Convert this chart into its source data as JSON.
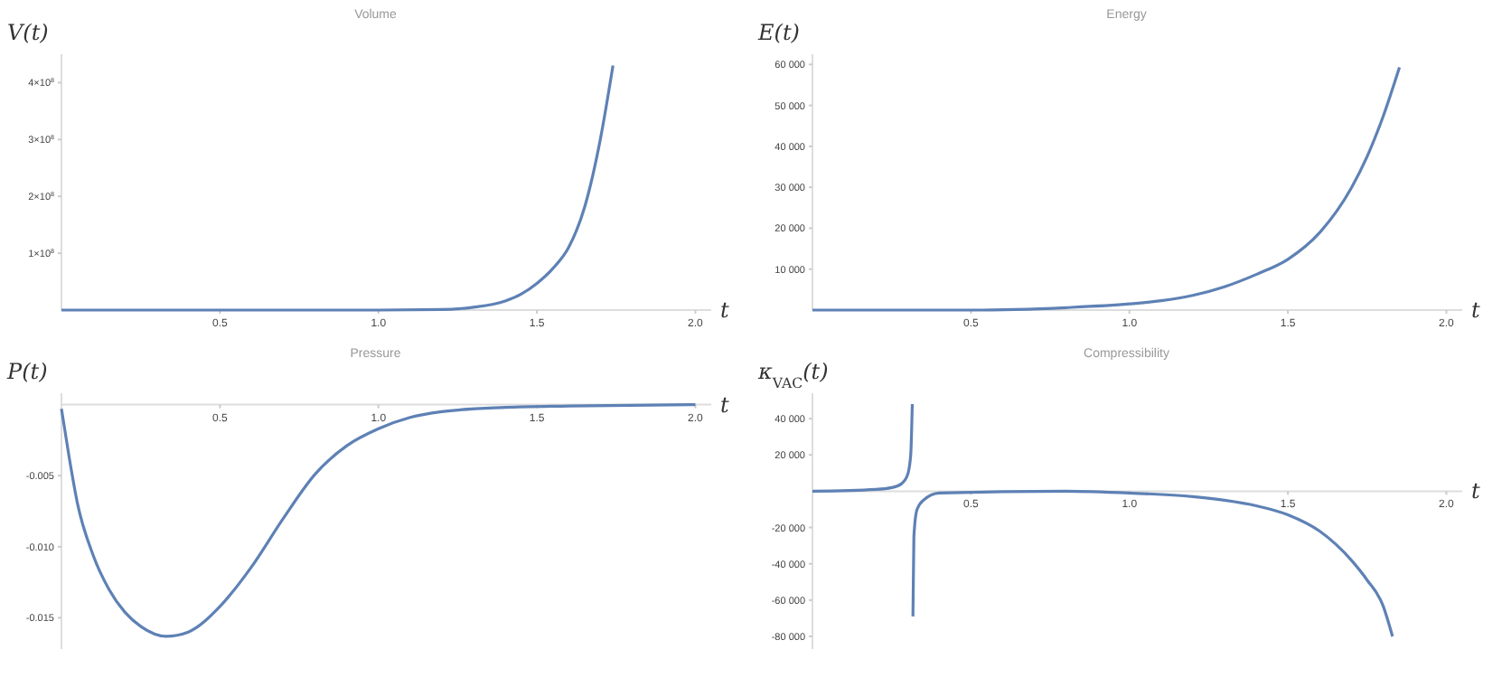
{
  "chart_data": [
    {
      "type": "line",
      "title": "Volume",
      "ylabel": "V(t)",
      "xlabel": "t",
      "xlim": [
        0,
        2.05
      ],
      "ylim": [
        0,
        450000000
      ],
      "xticks": [
        {
          "value": 0.5,
          "label": "0.5"
        },
        {
          "value": 1,
          "label": "1.0"
        },
        {
          "value": 1.5,
          "label": "1.5"
        },
        {
          "value": 2,
          "label": "2.0"
        }
      ],
      "yticks": [
        {
          "value": 100000000,
          "label": "1×10$^{8}$"
        },
        {
          "value": 200000000,
          "label": "2×10$^{8}$"
        },
        {
          "value": 300000000,
          "label": "3×10$^{8}$"
        },
        {
          "value": 400000000,
          "label": "4×10$^{8}$"
        }
      ],
      "series": [
        {
          "color": "#5e81b5",
          "x": [
            0,
            0.5,
            1.0,
            1.2,
            1.3,
            1.4,
            1.45,
            1.5,
            1.55,
            1.6,
            1.65,
            1.7,
            1.74
          ],
          "values": [
            0,
            0,
            0,
            1000000,
            5000000,
            16000000,
            28000000,
            47000000,
            73000000,
            110000000,
            180000000,
            300000000,
            430000000
          ]
        }
      ]
    },
    {
      "type": "line",
      "title": "Energy",
      "ylabel": "E(t)",
      "xlabel": "t",
      "xlim": [
        0,
        2.05
      ],
      "ylim": [
        0,
        62500
      ],
      "xticks": [
        {
          "value": 0.5,
          "label": "0.5"
        },
        {
          "value": 1,
          "label": "1.0"
        },
        {
          "value": 1.5,
          "label": "1.5"
        },
        {
          "value": 2,
          "label": "2.0"
        }
      ],
      "yticks": [
        {
          "value": 10000,
          "label": "10 000"
        },
        {
          "value": 20000,
          "label": "20 000"
        },
        {
          "value": 30000,
          "label": "30 000"
        },
        {
          "value": 40000,
          "label": "40 000"
        },
        {
          "value": 50000,
          "label": "50 000"
        },
        {
          "value": 60000,
          "label": "60 000"
        }
      ],
      "series": [
        {
          "color": "#5e81b5",
          "x": [
            0,
            0.5,
            0.8,
            1.0,
            1.1,
            1.2,
            1.3,
            1.4,
            1.5,
            1.6,
            1.7,
            1.75,
            1.8,
            1.852
          ],
          "values": [
            0,
            0,
            600,
            1500,
            2300,
            3600,
            5700,
            8700,
            12400,
            18900,
            29800,
            37500,
            47200,
            59300
          ]
        }
      ]
    },
    {
      "type": "line",
      "title": "Pressure",
      "ylabel": "P(t)",
      "xlabel": "t",
      "xlim": [
        0,
        2.05
      ],
      "ylim": [
        -0.0172,
        0.0008
      ],
      "xticks": [
        {
          "value": 0.5,
          "label": "0.5"
        },
        {
          "value": 1,
          "label": "1.0"
        },
        {
          "value": 1.5,
          "label": "1.5"
        },
        {
          "value": 2,
          "label": "2.0"
        }
      ],
      "yticks": [
        {
          "value": -0.015,
          "label": "-0.015"
        },
        {
          "value": -0.01,
          "label": "-0.010"
        },
        {
          "value": -0.005,
          "label": "-0.005"
        }
      ],
      "series": [
        {
          "color": "#5e81b5",
          "x": [
            0,
            0.025,
            0.05,
            0.1,
            0.15,
            0.2,
            0.25,
            0.33,
            0.4,
            0.5,
            0.6,
            0.7,
            0.8,
            0.9,
            1.0,
            1.1,
            1.2,
            1.4,
            1.6,
            2.0
          ],
          "values": [
            -0.0003,
            -0.0038,
            -0.0069,
            -0.0106,
            -0.013,
            -0.0146,
            -0.0156,
            -0.0163,
            -0.016,
            -0.0142,
            -0.0114,
            -0.008,
            -0.0049,
            -0.0029,
            -0.0017,
            -0.0009,
            -0.0005,
            -0.0002,
            -0.0001,
            0
          ]
        }
      ]
    },
    {
      "type": "line",
      "title": "Compressibility",
      "ylabel": "κ$_{VAC}$(t)",
      "xlabel": "t",
      "xlim": [
        0,
        2.05
      ],
      "ylim": [
        -87000,
        54000
      ],
      "xticks": [
        {
          "value": 0.5,
          "label": "0.5"
        },
        {
          "value": 1,
          "label": "1.0"
        },
        {
          "value": 1.5,
          "label": "1.5"
        },
        {
          "value": 2,
          "label": "2.0"
        }
      ],
      "yticks": [
        {
          "value": -80000,
          "label": "-80 000"
        },
        {
          "value": -60000,
          "label": "-60 000"
        },
        {
          "value": -40000,
          "label": "-40 000"
        },
        {
          "value": -20000,
          "label": "-20 000"
        },
        {
          "value": 20000,
          "label": "20 000"
        },
        {
          "value": 40000,
          "label": "40 000"
        }
      ],
      "series": [
        {
          "color": "#5e81b5",
          "x": [
            0,
            0.2,
            0.25,
            0.28,
            0.3,
            0.31,
            0.315,
            0.316,
            0.317,
            0.32,
            0.33,
            0.35,
            0.4,
            0.8,
            1.0,
            1.2,
            1.3,
            1.4,
            1.5,
            1.6,
            1.7,
            1.75,
            1.8,
            1.83
          ],
          "values": [
            0,
            1000,
            2000,
            4000,
            9000,
            20000,
            48000,
            null,
            -69000,
            -25000,
            -10000,
            -5000,
            -1000,
            0,
            -1000,
            -3000,
            -5000,
            -8000,
            -13000,
            -22000,
            -38000,
            -49000,
            -63000,
            -80000
          ]
        }
      ]
    }
  ]
}
